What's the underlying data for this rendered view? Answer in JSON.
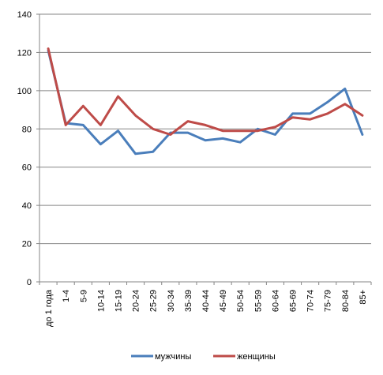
{
  "chart_data": {
    "type": "line",
    "categories": [
      "до 1 года",
      "1-4",
      "5-9",
      "10-14",
      "15-19",
      "20-24",
      "25-29",
      "30-34",
      "35-39",
      "40-44",
      "45-49",
      "50-54",
      "55-59",
      "60-64",
      "65-69",
      "70-74",
      "75-79",
      "80-84",
      "85+"
    ],
    "ylim": [
      0,
      140
    ],
    "yticks": [
      0,
      20,
      40,
      60,
      80,
      100,
      120,
      140
    ],
    "grid": true,
    "legend_position": "bottom",
    "series": [
      {
        "name": "мужчины",
        "color": "#4a7ebb",
        "values": [
          121,
          83,
          82,
          72,
          79,
          67,
          68,
          78,
          78,
          74,
          75,
          73,
          80,
          77,
          88,
          88,
          94,
          101,
          77
        ]
      },
      {
        "name": "женщины",
        "color": "#be4b48",
        "values": [
          122,
          82,
          92,
          82,
          97,
          87,
          80,
          77,
          84,
          82,
          79,
          79,
          79,
          81,
          86,
          85,
          88,
          93,
          87
        ]
      }
    ]
  }
}
